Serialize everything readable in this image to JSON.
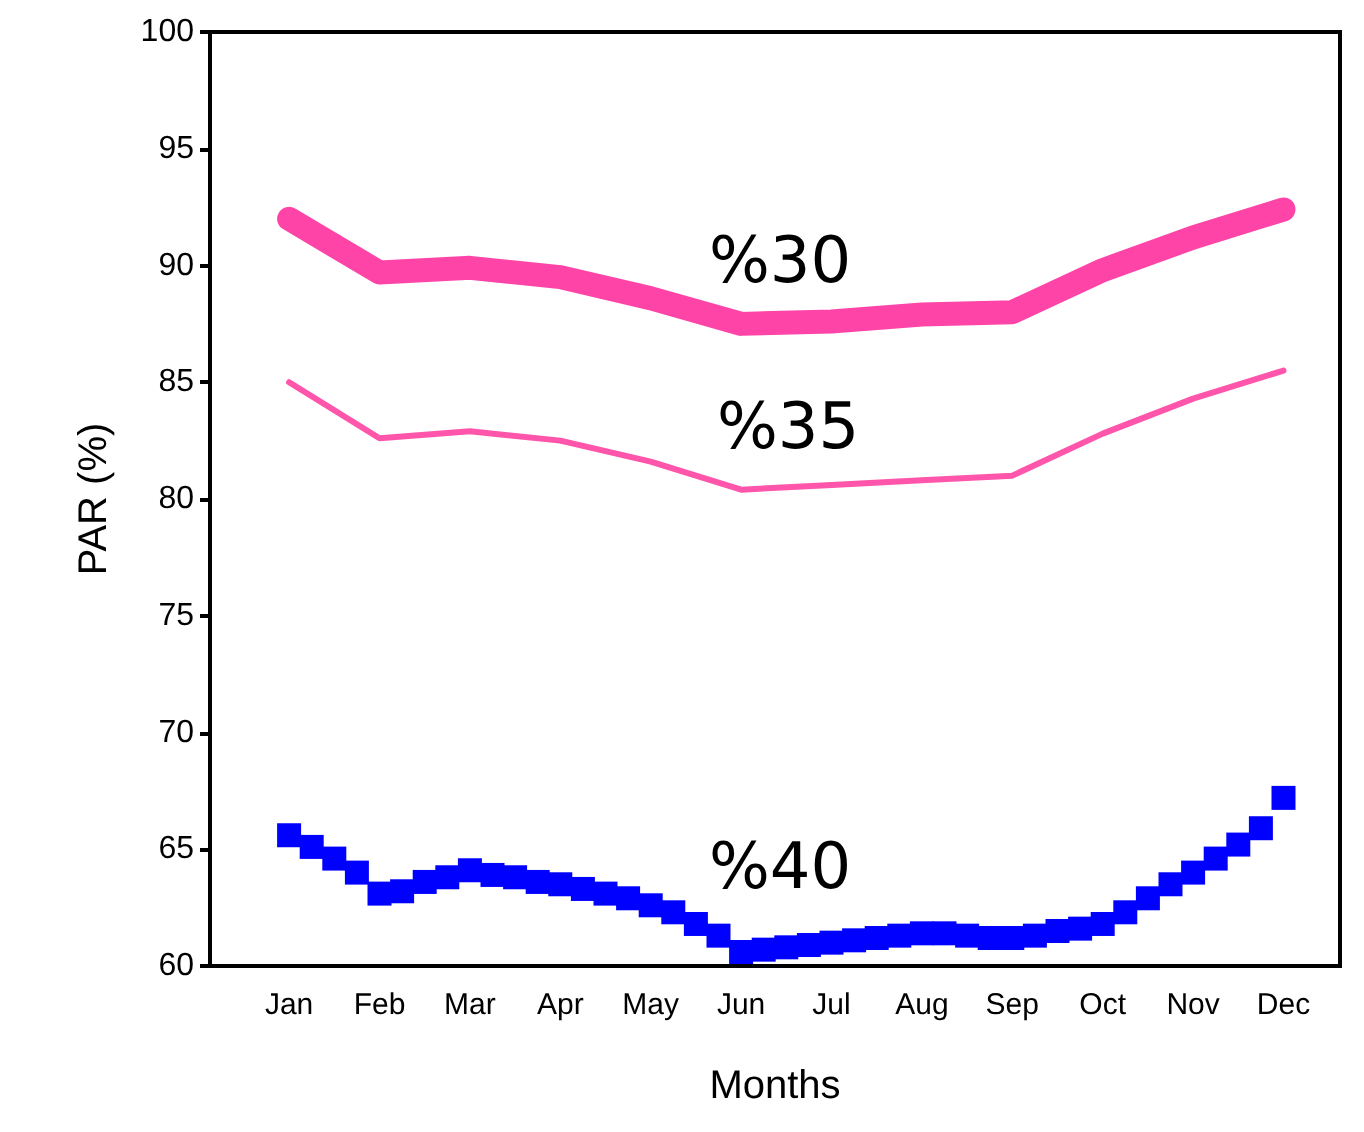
{
  "chart_data": {
    "type": "line",
    "xlabel": "Months",
    "ylabel": "PAR (%)",
    "ylim": [
      60,
      100
    ],
    "categories": [
      null,
      null,
      null,
      "Jan",
      null,
      null,
      null,
      "Feb",
      null,
      null,
      null,
      "Mar",
      null,
      null,
      null,
      "Apr",
      null,
      null,
      null,
      "May",
      null,
      null,
      null,
      "Jun",
      null,
      null,
      null,
      "Jul",
      null,
      null,
      null,
      "Aug",
      null,
      null,
      null,
      "Sep",
      null,
      null,
      null,
      "Oct",
      null,
      null,
      null,
      "Nov",
      null,
      null,
      null,
      "Dec",
      null,
      null
    ],
    "yticks": [
      60,
      65,
      70,
      75,
      80,
      85,
      90,
      95,
      100
    ],
    "grid": false,
    "series": [
      {
        "color": "#ff44a8",
        "marker": "none",
        "x": [
          "Jan",
          "Feb",
          "Mar",
          "Apr",
          "May",
          "Jun",
          "Jul",
          "Aug",
          "Sep",
          "Oct",
          "Nov",
          "Dec"
        ],
        "values": [
          92,
          89.7,
          89.9,
          89.5,
          88.6,
          87.5,
          87.6,
          87.9,
          88,
          89.8,
          91.2,
          92.4
        ]
      },
      {
        "color": "#ff55aa",
        "marker": "none",
        "x": [
          "Jan",
          "Feb",
          "Mar",
          "Apr",
          "May",
          "Jun",
          "Jul",
          "Aug",
          "Sep",
          "Oct",
          "Nov",
          "Dec"
        ],
        "values": [
          85,
          82.6,
          82.9,
          82.5,
          81.6,
          80.4,
          80.6,
          80.8,
          81,
          82.8,
          84.3,
          85.5
        ]
      },
      {
        "type": "scatter",
        "color": "#0000ff",
        "marker": "square",
        "values": [
          null,
          null,
          null,
          65.6,
          65.1,
          64.6,
          64.0,
          63.1,
          63.2,
          63.6,
          63.8,
          64.1,
          63.9,
          63.8,
          63.6,
          63.5,
          63.3,
          63.1,
          62.9,
          62.6,
          62.3,
          61.8,
          61.3,
          60.6,
          60.7,
          60.8,
          60.9,
          61.0,
          61.1,
          61.2,
          61.3,
          61.4,
          61.4,
          61.3,
          61.2,
          61.2,
          61.3,
          61.5,
          61.6,
          61.8,
          62.3,
          62.9,
          63.5,
          64.0,
          64.6,
          65.2,
          65.9,
          67.2,
          null,
          null
        ]
      }
    ],
    "annotations": [
      "%30",
      "%35",
      "%40"
    ]
  }
}
